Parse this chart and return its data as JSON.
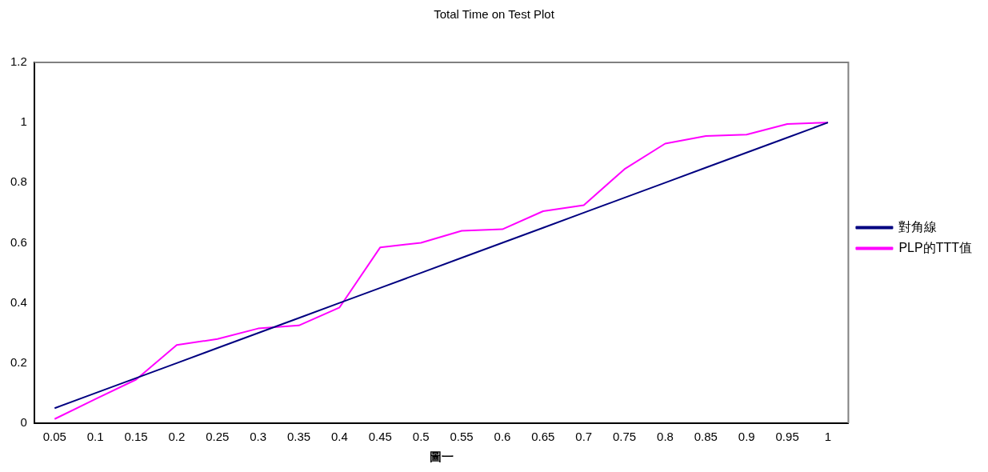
{
  "chart_data": {
    "type": "line",
    "title": "Total Time on Test Plot",
    "xlabel": "圖一",
    "categories": [
      "0.05",
      "0.1",
      "0.15",
      "0.2",
      "0.25",
      "0.3",
      "0.35",
      "0.4",
      "0.45",
      "0.5",
      "0.55",
      "0.6",
      "0.65",
      "0.7",
      "0.75",
      "0.8",
      "0.85",
      "0.9",
      "0.95",
      "1"
    ],
    "series": [
      {
        "name": "對角線",
        "color": "#000080",
        "values": [
          0.05,
          0.1,
          0.15,
          0.2,
          0.25,
          0.3,
          0.35,
          0.4,
          0.45,
          0.5,
          0.55,
          0.6,
          0.65,
          0.7,
          0.75,
          0.8,
          0.85,
          0.9,
          0.95,
          1
        ]
      },
      {
        "name": "PLP的TTT值",
        "color": "#ff00ff",
        "values": [
          0.014,
          0.08,
          0.145,
          0.26,
          0.28,
          0.315,
          0.325,
          0.385,
          0.585,
          0.6,
          0.64,
          0.645,
          0.705,
          0.725,
          0.845,
          0.93,
          0.955,
          0.96,
          0.995,
          1
        ]
      }
    ],
    "ylim": [
      0,
      1.2
    ],
    "yticks": [
      0,
      0.2,
      0.4,
      0.6,
      0.8,
      1,
      1.2
    ],
    "grid": false,
    "legend": "right",
    "marker": "none",
    "line_style": "solid"
  }
}
